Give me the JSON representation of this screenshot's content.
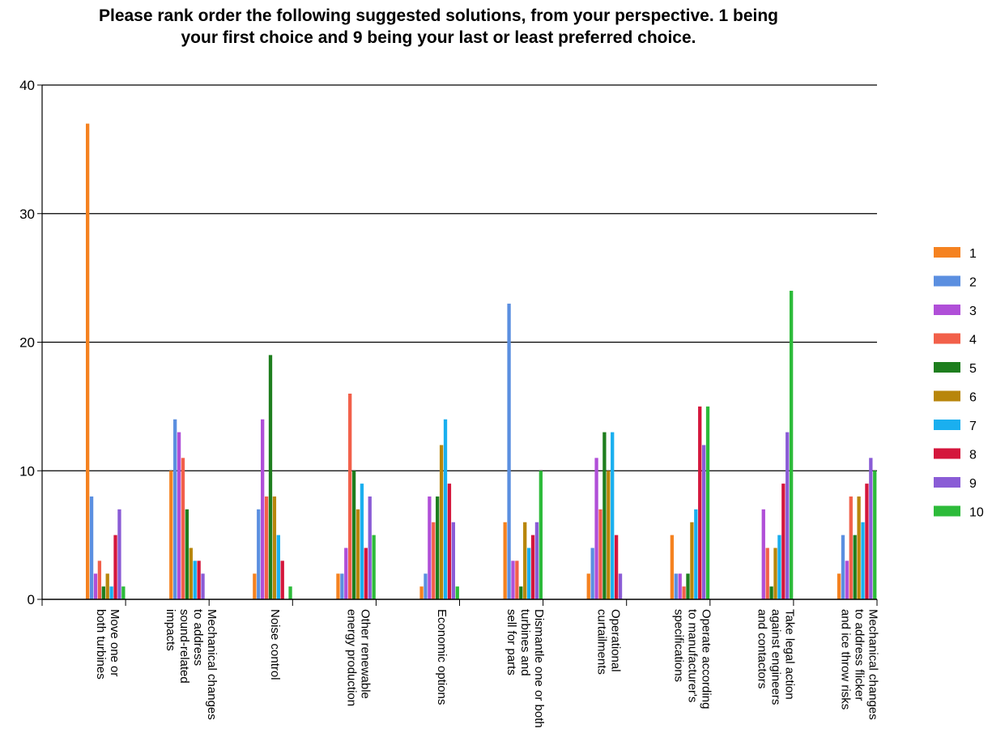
{
  "chart_data": {
    "type": "bar",
    "title_lines": [
      "Please rank order the following suggested solutions, from your perspective. 1 being",
      "your first choice and 9 being your last or least preferred choice."
    ],
    "ylim": [
      0,
      40
    ],
    "yticks": [
      0,
      10,
      20,
      30,
      40
    ],
    "grid": true,
    "legend_position": "right",
    "categories": [
      [
        "Move one or",
        "both turbines"
      ],
      [
        "Mechanical changes",
        "to address",
        "sound-related",
        "impacts"
      ],
      [
        "Noise control"
      ],
      [
        "Other renewable",
        "energy production"
      ],
      [
        "Economic options"
      ],
      [
        "Dismantle one or both",
        "turbines and",
        "sell for parts"
      ],
      [
        "Operational",
        "curtailments"
      ],
      [
        "Operate according",
        "to manufacturer's",
        "specifications"
      ],
      [
        "Take legal action",
        "against engineers",
        "and contactors"
      ],
      [
        "Mechanical changes",
        "to address flicker",
        "and ice throw risks"
      ]
    ],
    "series": [
      {
        "name": "1",
        "color": "#F58220",
        "values": [
          37,
          10,
          2,
          2,
          1,
          6,
          2,
          5,
          0,
          2
        ]
      },
      {
        "name": "2",
        "color": "#5B8FE0",
        "values": [
          8,
          14,
          7,
          2,
          2,
          23,
          4,
          2,
          0,
          5
        ]
      },
      {
        "name": "3",
        "color": "#B04FD8",
        "values": [
          2,
          13,
          14,
          4,
          8,
          3,
          11,
          2,
          7,
          3
        ]
      },
      {
        "name": "4",
        "color": "#F2604A",
        "values": [
          3,
          11,
          8,
          16,
          6,
          3,
          7,
          1,
          4,
          8
        ]
      },
      {
        "name": "5",
        "color": "#1E7E1E",
        "values": [
          1,
          7,
          19,
          10,
          8,
          1,
          13,
          2,
          1,
          5
        ]
      },
      {
        "name": "6",
        "color": "#B8860B",
        "values": [
          2,
          4,
          8,
          7,
          12,
          6,
          10,
          6,
          4,
          8
        ]
      },
      {
        "name": "7",
        "color": "#1AAFEF",
        "values": [
          1,
          3,
          5,
          9,
          14,
          4,
          13,
          7,
          5,
          6
        ]
      },
      {
        "name": "8",
        "color": "#D4163C",
        "values": [
          5,
          3,
          3,
          4,
          9,
          5,
          5,
          15,
          9,
          9
        ]
      },
      {
        "name": "9",
        "color": "#8A5CD6",
        "values": [
          7,
          2,
          0,
          8,
          6,
          6,
          2,
          12,
          13,
          11
        ]
      },
      {
        "name": "10",
        "color": "#2DBB3A",
        "values": [
          1,
          0,
          1,
          5,
          1,
          10,
          0,
          15,
          24,
          10
        ]
      }
    ]
  }
}
